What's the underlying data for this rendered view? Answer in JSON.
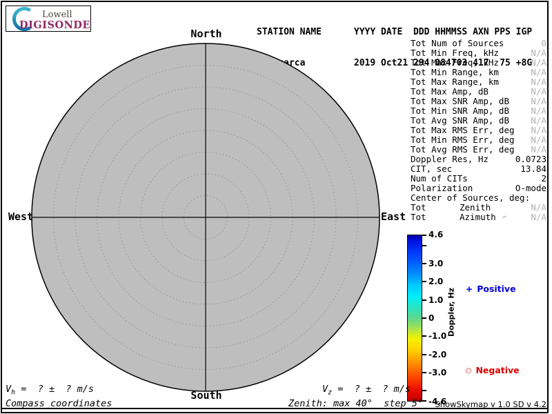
{
  "logo": {
    "brand_top": "Lowell",
    "brand_bottom": "DIGISONDE",
    "crescent_color_top": "#3fb6cf",
    "crescent_color_bottom": "#1374a8",
    "digisonde_color": "#8e2a63"
  },
  "header": {
    "line1": "STATION NAME      YYYY DATE  DDD HHMMSS AXN PPS IGP",
    "line2": "Jicamarca         2019 Oct21 294 084703 417  75 +8G"
  },
  "skymap": {
    "north": "North",
    "south": "South",
    "west": "West",
    "east": "East",
    "fill": "#bebebe",
    "ring_color": "#949494",
    "rings_total": 8,
    "zenith_max_deg": 40,
    "zenith_step_deg": 5
  },
  "stats": {
    "rows": [
      {
        "label": "Tot Num of Sources",
        "value": "0",
        "na": true
      },
      {
        "label": "Tot Min Freq, kHz",
        "value": "N/A",
        "na": true
      },
      {
        "label": "Tot Max Freq, kHz",
        "value": "N/A",
        "na": true
      },
      {
        "label": "Tot Min Range, km",
        "value": "N/A",
        "na": true
      },
      {
        "label": "Tot Max Range, km",
        "value": "N/A",
        "na": true
      },
      {
        "label": "Tot Max Amp, dB",
        "value": "N/A",
        "na": true
      },
      {
        "label": "Tot Max SNR Amp, dB",
        "value": "N/A",
        "na": true
      },
      {
        "label": "Tot Min SNR Amp, dB",
        "value": "N/A",
        "na": true
      },
      {
        "label": "Tot Avg SNR Amp, dB",
        "value": "N/A",
        "na": true
      },
      {
        "label": "Tot Max RMS Err, deg",
        "value": "N/A",
        "na": true
      },
      {
        "label": "Tot Min RMS Err, deg",
        "value": "N/A",
        "na": true
      },
      {
        "label": "Tot Avg RMS Err, deg",
        "value": "N/A",
        "na": true
      },
      {
        "label": "Doppler Res, Hz",
        "value": "0.0723",
        "na": false
      },
      {
        "label": "CIT, sec",
        "value": "13.84",
        "na": false
      },
      {
        "label": "Num of CITs",
        "value": "2",
        "na": false
      },
      {
        "label": "Polarization",
        "value": "O-mode",
        "na": false
      },
      {
        "label": "Center of Sources, deg:",
        "value": "",
        "na": false
      },
      {
        "label": "Tot",
        "mid": "Zenith",
        "value": "N/A",
        "na": true
      },
      {
        "label": "Tot",
        "mid": "Azimuth",
        "suffix": "↶",
        "value": "N/A",
        "na": true
      }
    ]
  },
  "colorbar": {
    "title": "Doppler, Hz",
    "max": 4.6,
    "min": -4.6,
    "ticks": [
      {
        "v": 4.6,
        "label": "4.6"
      },
      {
        "v": 4.0,
        "label": ""
      },
      {
        "v": 3.0,
        "label": "3.0"
      },
      {
        "v": 2.0,
        "label": "2.0"
      },
      {
        "v": 1.0,
        "label": "1.0"
      },
      {
        "v": 0,
        "label": "0"
      },
      {
        "v": -1.0,
        "label": "-1.0"
      },
      {
        "v": -2.0,
        "label": "-2.0"
      },
      {
        "v": -3.0,
        "label": "-3.0"
      },
      {
        "v": -4.0,
        "label": ""
      },
      {
        "v": -4.6,
        "label": "-4.6"
      }
    ]
  },
  "legend": {
    "positive": {
      "marker": "+",
      "label": "Positive",
      "color": "#0000dd"
    },
    "negative": {
      "marker": "○",
      "label": "Negative",
      "color": "#dd0000"
    }
  },
  "velocities": {
    "vh": {
      "sym": "V",
      "sub": "h",
      "rest": " =  ? ±  ? m/s"
    },
    "vz": {
      "sym": "V",
      "sub": "z",
      "rest": " =  ? ±  ? m/s"
    }
  },
  "footer": {
    "coord_note": "Compass coordinates",
    "zenith_note": "Zenith: max 40°  step 5°",
    "credit": "ShowSkymap v 1.0  SD v 4.2"
  },
  "chart_data": {
    "type": "scatter",
    "projection": "polar",
    "points": [],
    "num_sources": 0,
    "zenith_rings_deg": [
      5,
      10,
      15,
      20,
      25,
      30,
      35,
      40
    ],
    "compass_labels": [
      "North",
      "East",
      "South",
      "West"
    ],
    "colorbar": {
      "label": "Doppler, Hz",
      "min": -4.6,
      "max": 4.6,
      "labeled_ticks": [
        4.6,
        3.0,
        2.0,
        1.0,
        0,
        -1.0,
        -2.0,
        -3.0,
        -4.6
      ]
    },
    "legend": [
      "+ Positive",
      "○ Negative"
    ]
  }
}
